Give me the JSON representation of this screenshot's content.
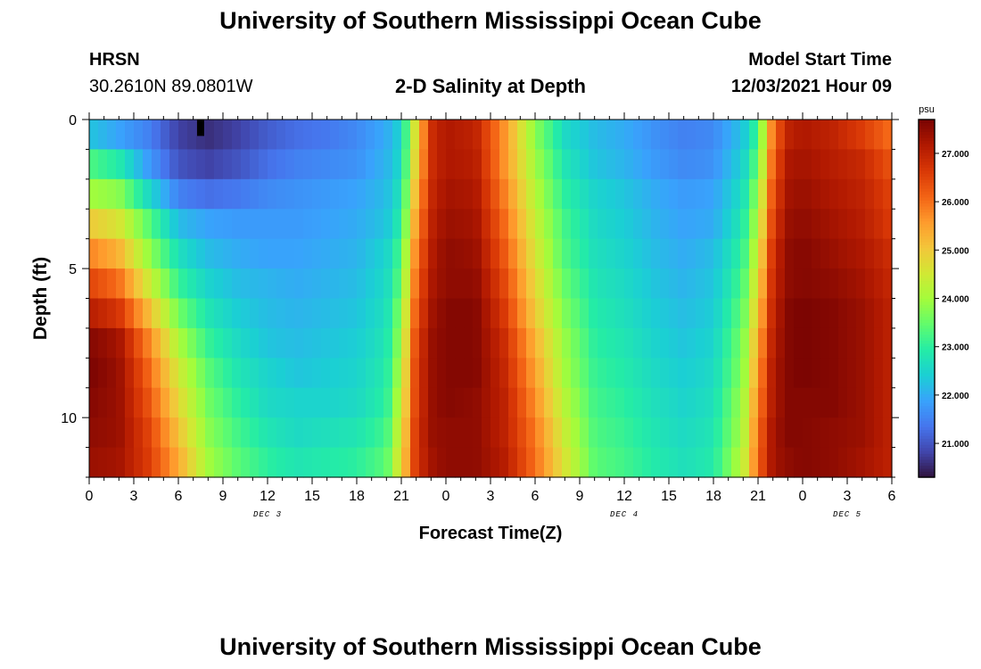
{
  "page": {
    "title": "University of Southern Mississippi Ocean Cube",
    "footer_title": "University of Southern Mississippi Ocean Cube",
    "station": {
      "name": "HRSN",
      "coords": "30.2610N  89.0801W"
    },
    "plot_title": "2-D Salinity at Depth",
    "model": {
      "label": "Model Start Time",
      "value": "12/03/2021 Hour 09"
    }
  },
  "chart_data": {
    "type": "heatmap",
    "xlabel": "Forecast Time(Z)",
    "ylabel": "Depth (ft)",
    "y_ticks": [
      "0",
      "5",
      "10"
    ],
    "ylim": [
      0,
      12
    ],
    "y_inverted": true,
    "x_ticks": [
      "0",
      "3",
      "6",
      "9",
      "12",
      "15",
      "18",
      "21",
      "0",
      "3",
      "6",
      "9",
      "12",
      "15",
      "18",
      "21",
      "0",
      "3",
      "6"
    ],
    "x_hours_from_dec3_00z": [
      0,
      3,
      6,
      9,
      12,
      15,
      18,
      21,
      24,
      27,
      30,
      33,
      36,
      39,
      42,
      45,
      48,
      51,
      54
    ],
    "xlim": [
      0,
      54
    ],
    "date_labels": [
      {
        "label": "DEC 3",
        "hour": 12
      },
      {
        "label": "DEC 4",
        "hour": 36
      },
      {
        "label": "DEC 5",
        "hour": 51
      }
    ],
    "colorbar": {
      "unit": "psu",
      "range": [
        20.3,
        27.7
      ],
      "ticks": [
        "21.000",
        "22.000",
        "23.000",
        "24.000",
        "25.000",
        "26.000",
        "27.000"
      ],
      "tick_values": [
        21,
        22,
        23,
        24,
        25,
        26,
        27
      ]
    },
    "layers_depth_ft": [
      0.5,
      1.5,
      2.5,
      3.5,
      4.5,
      5.5,
      6.5,
      7.5,
      8.5,
      9.5,
      10.5,
      11.5
    ],
    "profile_hours": [
      0,
      2,
      4,
      6,
      8,
      10,
      12,
      14,
      16,
      18,
      20,
      21,
      22,
      23,
      24,
      26,
      28,
      30,
      32,
      34,
      36,
      38,
      40,
      42,
      44,
      45,
      46,
      47,
      48,
      50,
      52,
      54
    ],
    "salinity_psu": [
      [
        22.3,
        21.9,
        21.5,
        20.8,
        20.6,
        20.8,
        21.1,
        21.3,
        21.4,
        21.6,
        22.0,
        22.5,
        24.8,
        26.8,
        27.2,
        27.0,
        25.6,
        23.8,
        22.6,
        22.2,
        22.0,
        21.7,
        21.5,
        21.6,
        22.3,
        23.2,
        26.0,
        27.0,
        27.2,
        27.0,
        26.6,
        26.0
      ],
      [
        23.3,
        22.9,
        21.8,
        21.0,
        20.8,
        21.0,
        21.3,
        21.5,
        21.6,
        21.7,
        22.1,
        22.6,
        25.0,
        26.8,
        27.2,
        27.1,
        25.6,
        24.0,
        22.8,
        22.3,
        22.1,
        21.8,
        21.6,
        21.7,
        22.5,
        23.5,
        26.2,
        27.2,
        27.3,
        27.1,
        26.9,
        26.3
      ],
      [
        24.0,
        23.8,
        22.6,
        21.5,
        21.3,
        21.4,
        21.6,
        21.7,
        21.8,
        21.9,
        22.2,
        22.8,
        25.3,
        26.9,
        27.3,
        27.2,
        25.8,
        24.2,
        23.0,
        22.5,
        22.3,
        22.0,
        21.8,
        21.9,
        22.7,
        23.9,
        26.4,
        27.3,
        27.4,
        27.2,
        27.0,
        26.5
      ],
      [
        25.0,
        24.6,
        23.4,
        22.2,
        21.9,
        21.8,
        21.8,
        21.8,
        21.9,
        22.0,
        22.3,
        23.0,
        25.6,
        27.0,
        27.4,
        27.3,
        26.0,
        24.4,
        23.2,
        22.6,
        22.4,
        22.1,
        21.9,
        22.0,
        22.9,
        24.2,
        26.6,
        27.4,
        27.5,
        27.3,
        27.1,
        26.6
      ],
      [
        25.8,
        25.3,
        23.9,
        22.7,
        22.2,
        22.0,
        21.9,
        21.9,
        22.0,
        22.1,
        22.5,
        23.3,
        25.9,
        27.1,
        27.5,
        27.4,
        26.2,
        24.6,
        23.3,
        22.7,
        22.5,
        22.2,
        22.0,
        22.2,
        23.1,
        24.5,
        26.8,
        27.5,
        27.6,
        27.4,
        27.2,
        26.8
      ],
      [
        26.5,
        26.0,
        24.5,
        23.1,
        22.5,
        22.2,
        22.1,
        22.0,
        22.1,
        22.2,
        22.6,
        23.5,
        26.1,
        27.2,
        27.5,
        27.5,
        26.4,
        24.8,
        23.5,
        22.8,
        22.6,
        22.3,
        22.1,
        22.3,
        23.3,
        24.8,
        26.9,
        27.5,
        27.6,
        27.5,
        27.3,
        26.9
      ],
      [
        27.1,
        26.7,
        25.2,
        23.6,
        22.8,
        22.4,
        22.2,
        22.1,
        22.2,
        22.3,
        22.7,
        23.8,
        26.3,
        27.3,
        27.6,
        27.6,
        26.6,
        25.0,
        23.7,
        22.9,
        22.7,
        22.4,
        22.2,
        22.4,
        23.5,
        25.1,
        27.0,
        27.6,
        27.7,
        27.6,
        27.4,
        27.0
      ],
      [
        27.6,
        27.3,
        25.8,
        24.1,
        23.1,
        22.6,
        22.3,
        22.2,
        22.3,
        22.4,
        22.8,
        24.0,
        26.5,
        27.4,
        27.6,
        27.6,
        26.8,
        25.3,
        23.9,
        23.0,
        22.8,
        22.5,
        22.3,
        22.5,
        23.7,
        25.4,
        27.1,
        27.6,
        27.7,
        27.6,
        27.4,
        27.0
      ],
      [
        27.7,
        27.4,
        26.1,
        24.5,
        23.4,
        22.8,
        22.5,
        22.3,
        22.4,
        22.5,
        22.9,
        24.2,
        26.6,
        27.4,
        27.6,
        27.6,
        26.9,
        25.5,
        24.0,
        23.1,
        22.9,
        22.6,
        22.4,
        22.6,
        23.8,
        25.6,
        27.2,
        27.6,
        27.7,
        27.6,
        27.4,
        27.0
      ],
      [
        27.6,
        27.4,
        26.3,
        24.8,
        23.6,
        23.0,
        22.6,
        22.5,
        22.5,
        22.6,
        23.0,
        24.4,
        26.6,
        27.4,
        27.6,
        27.5,
        27.0,
        25.7,
        24.2,
        23.2,
        23.0,
        22.7,
        22.5,
        22.7,
        24.0,
        25.8,
        27.2,
        27.6,
        27.6,
        27.6,
        27.4,
        27.0
      ],
      [
        27.5,
        27.4,
        26.5,
        25.1,
        23.8,
        23.2,
        22.8,
        22.6,
        22.7,
        22.8,
        23.2,
        24.6,
        26.7,
        27.4,
        27.5,
        27.5,
        27.0,
        25.9,
        24.4,
        23.3,
        23.1,
        22.8,
        22.6,
        22.8,
        24.1,
        26.0,
        27.3,
        27.6,
        27.6,
        27.5,
        27.4,
        27.0
      ],
      [
        27.4,
        27.3,
        26.6,
        25.4,
        24.0,
        23.4,
        23.0,
        22.8,
        22.9,
        23.0,
        23.4,
        24.8,
        26.7,
        27.3,
        27.5,
        27.5,
        27.1,
        26.0,
        24.6,
        23.4,
        23.2,
        22.9,
        22.7,
        22.9,
        24.3,
        26.1,
        27.3,
        27.5,
        27.6,
        27.5,
        27.3,
        27.0
      ]
    ],
    "markers": [
      {
        "hour": 7.5,
        "depth_from": 0,
        "depth_to": 0.55,
        "color": "#000000"
      }
    ]
  },
  "colors": {
    "scale": [
      "#30123b",
      "#4145ab",
      "#4675ed",
      "#39a2fc",
      "#1bcfd4",
      "#24eca6",
      "#61fc6c",
      "#a4fc3b",
      "#d1e834",
      "#f3c63a",
      "#fe9b2d",
      "#f36315",
      "#d93806",
      "#b11901",
      "#7a0402"
    ]
  }
}
